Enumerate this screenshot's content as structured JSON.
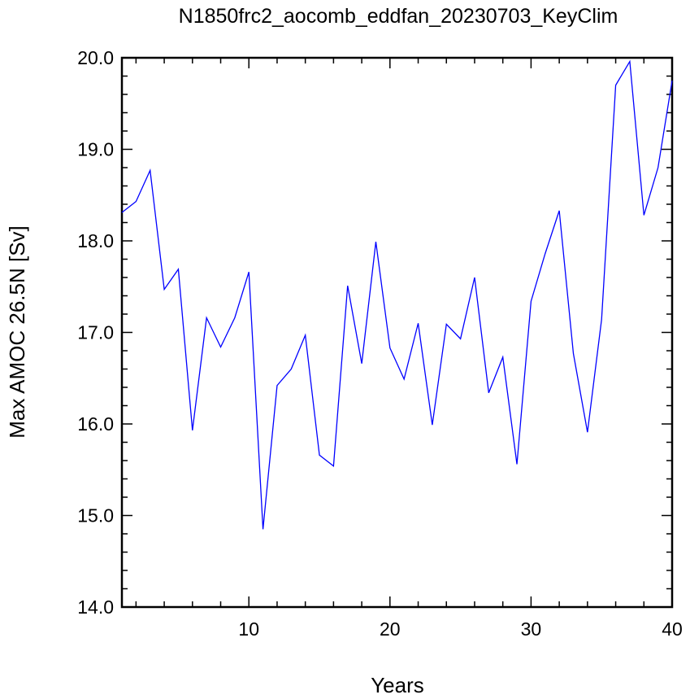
{
  "chart_data": {
    "type": "line",
    "title": "N1850frc2_aocomb_eddfan_20230703_KeyClim",
    "xlabel": "Years",
    "ylabel": "Max AMOC 26.5N [Sv]",
    "xlim": [
      1,
      40
    ],
    "ylim": [
      14.0,
      20.0
    ],
    "x_major_ticks": [
      10,
      20,
      30,
      40
    ],
    "x_tick_labels": [
      "10",
      "20",
      "30",
      "40"
    ],
    "x_minor_step": 2,
    "y_major_ticks": [
      14.0,
      15.0,
      16.0,
      17.0,
      18.0,
      19.0,
      20.0
    ],
    "y_tick_labels": [
      "14.0",
      "15.0",
      "16.0",
      "17.0",
      "18.0",
      "19.0",
      "20.0"
    ],
    "y_minor_step": 0.2,
    "grid": false,
    "series": [
      {
        "color": "#0000ff",
        "x": [
          1,
          2,
          3,
          4,
          5,
          6,
          7,
          8,
          9,
          10,
          11,
          12,
          13,
          14,
          15,
          16,
          17,
          18,
          19,
          20,
          21,
          22,
          23,
          24,
          25,
          26,
          27,
          28,
          29,
          30,
          31,
          32,
          33,
          34,
          35,
          36,
          37,
          38,
          39,
          40
        ],
        "values": [
          18.31,
          18.43,
          18.77,
          17.47,
          17.69,
          15.93,
          17.16,
          16.84,
          17.16,
          17.66,
          14.85,
          16.42,
          16.6,
          16.97,
          15.66,
          15.54,
          17.51,
          16.66,
          17.99,
          16.83,
          16.49,
          17.1,
          15.99,
          17.09,
          16.93,
          17.6,
          16.34,
          16.73,
          15.56,
          17.34,
          17.86,
          18.33,
          16.77,
          15.91,
          17.14,
          19.7,
          19.96,
          18.28,
          18.8,
          19.75
        ]
      }
    ]
  }
}
